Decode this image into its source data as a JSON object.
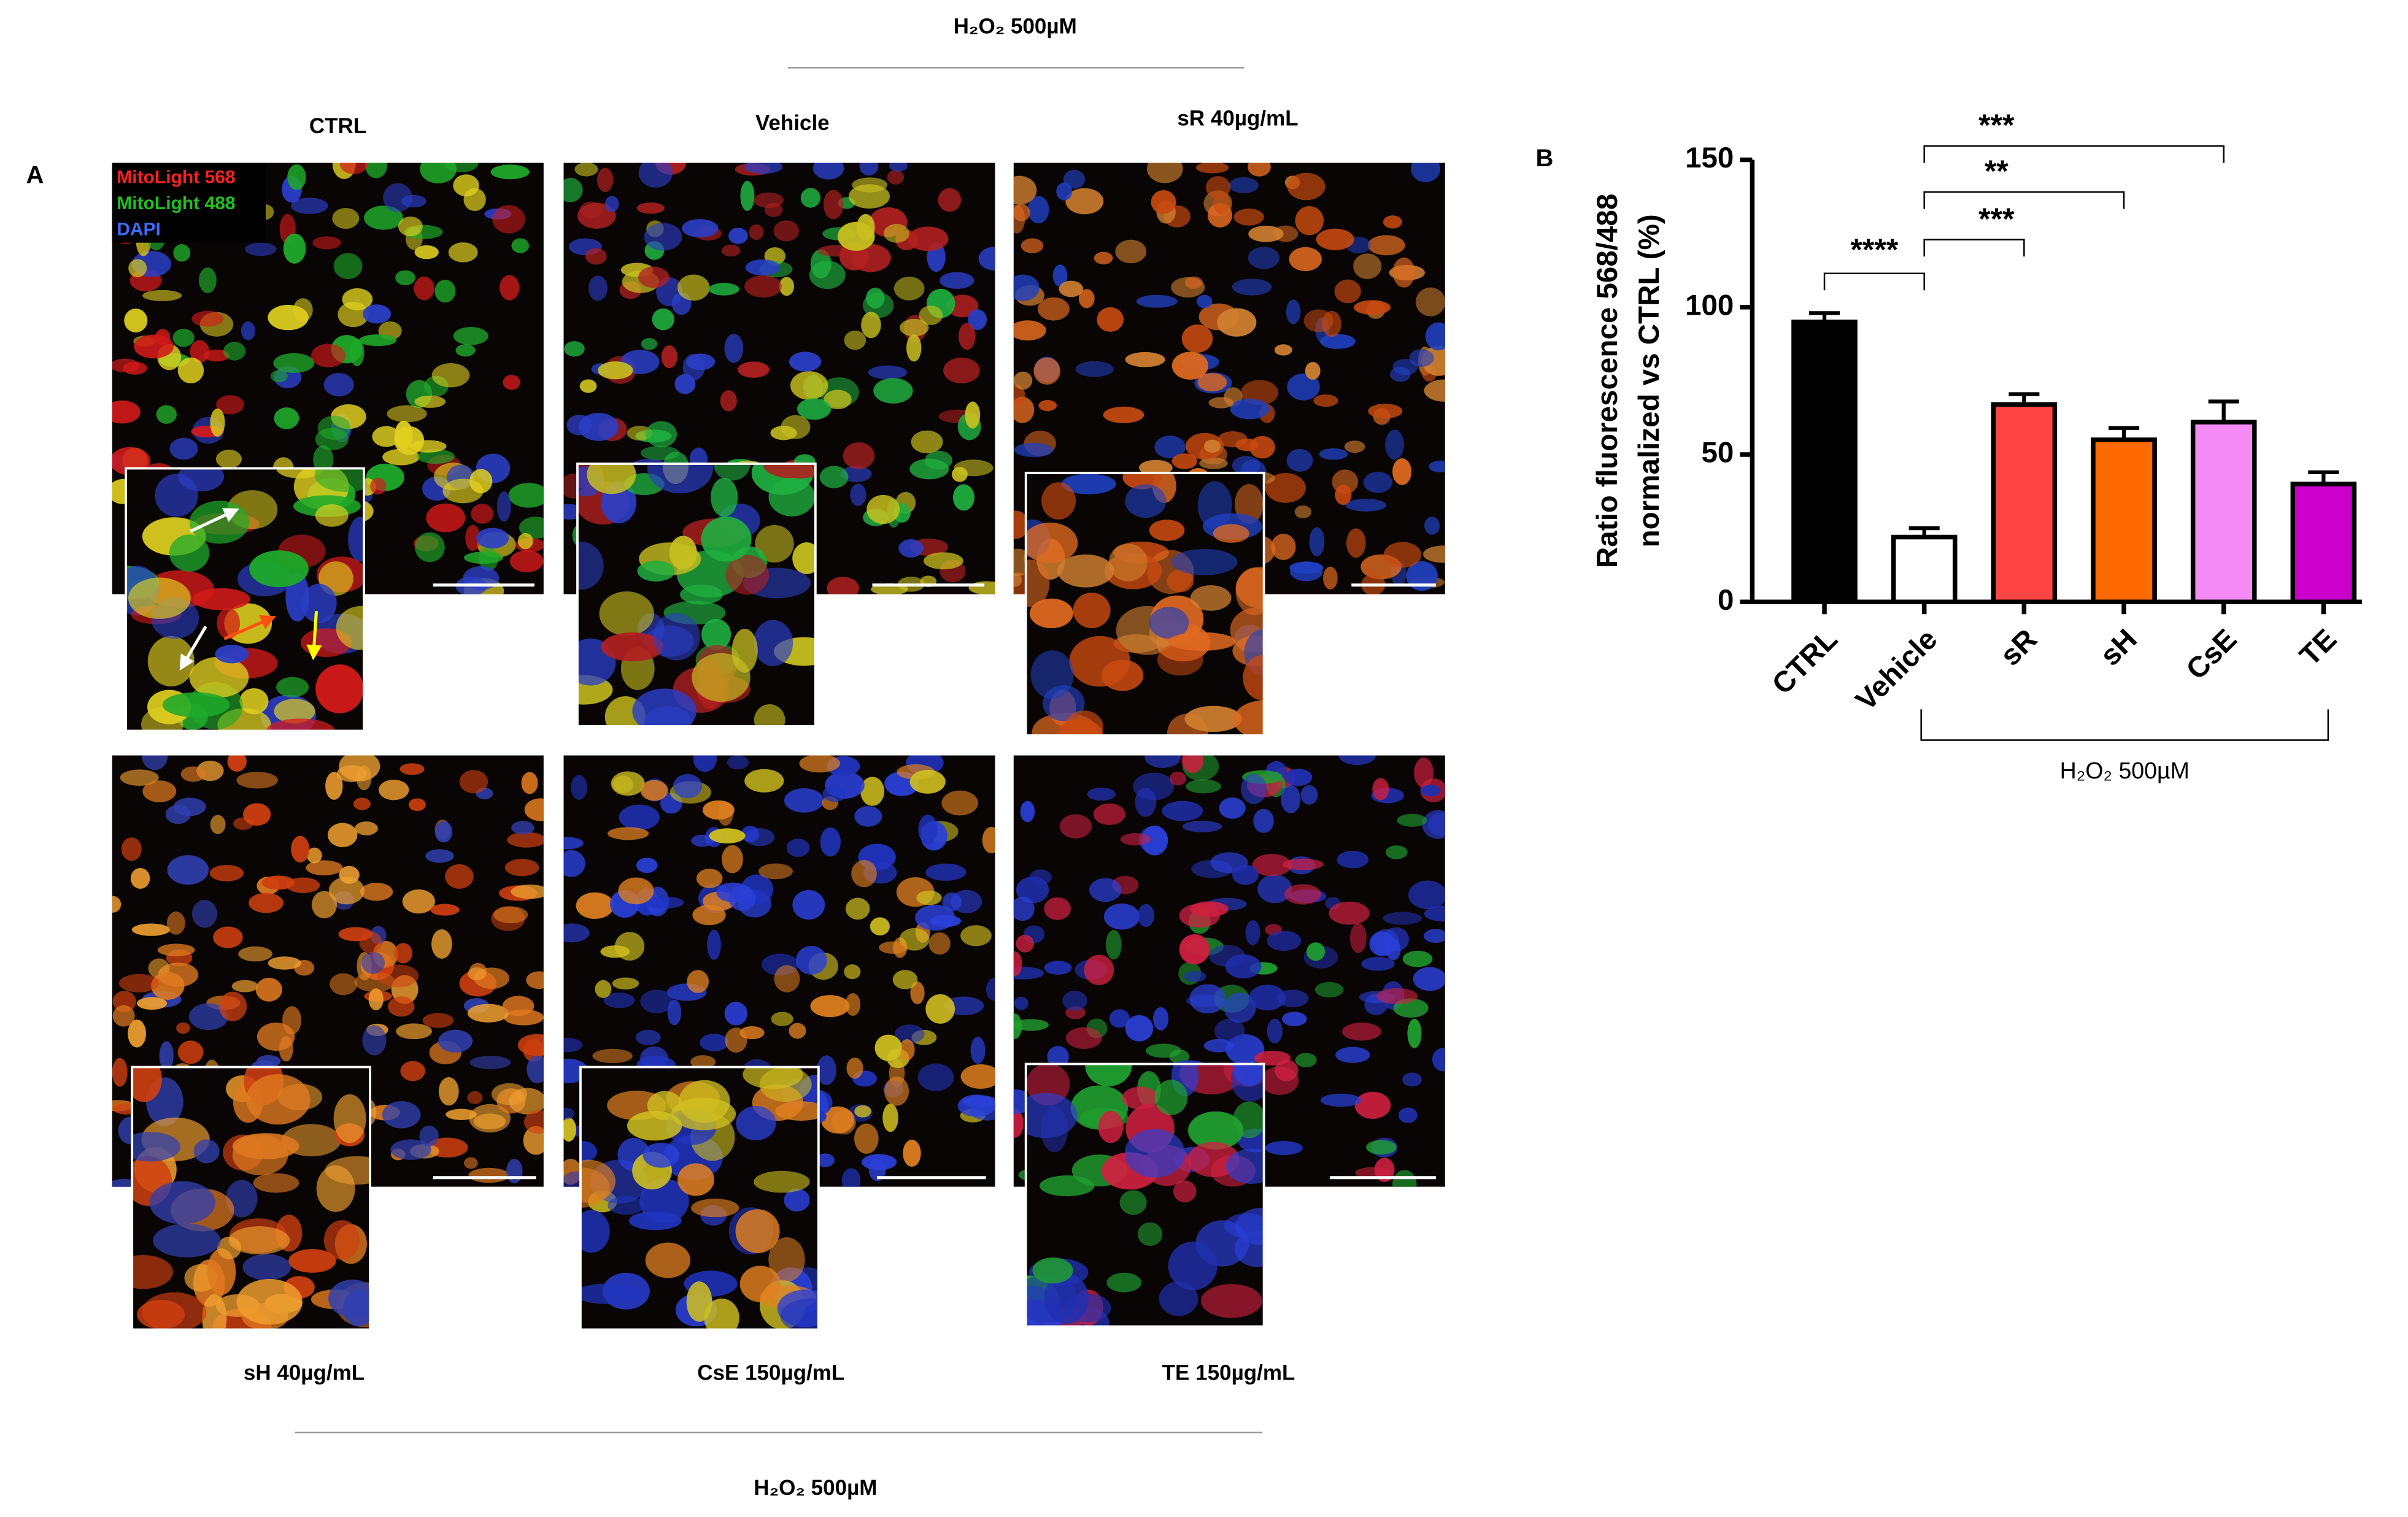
{
  "panel_a": {
    "label": "A",
    "top_header": "H₂O₂ 500µM",
    "top_titles": [
      "CTRL",
      "Vehicle",
      "sR 40µg/mL"
    ],
    "bottom_titles": [
      "sH 40µg/mL",
      "CsE 150µg/mL",
      "TE 150µg/mL"
    ],
    "bottom_header": "H₂O₂ 500µM",
    "legend": [
      "MitoLight 568",
      "MitoLight 488",
      "DAPI"
    ]
  },
  "chart_data": {
    "type": "bar",
    "panel_label": "B",
    "y_label": [
      "Ratio fluorescence 568/488",
      "normalized vs CTRL (%)"
    ],
    "categories": [
      "CTRL",
      "Vehicle",
      "sR",
      "sH",
      "CsE",
      "TE"
    ],
    "values": [
      95,
      22,
      67,
      55,
      61,
      40
    ],
    "errors": [
      3,
      3,
      3.5,
      4,
      7,
      4
    ],
    "colors": [
      "#000000",
      "#ffffff",
      "#ff4444",
      "#ff6a00",
      "#f58cf5",
      "#cc00cc"
    ],
    "ylim": [
      0,
      150
    ],
    "yticks": [
      0,
      50,
      100,
      150
    ],
    "group_label": "H₂O₂ 500µM",
    "significance": [
      "****",
      "***",
      "**",
      "***"
    ]
  }
}
